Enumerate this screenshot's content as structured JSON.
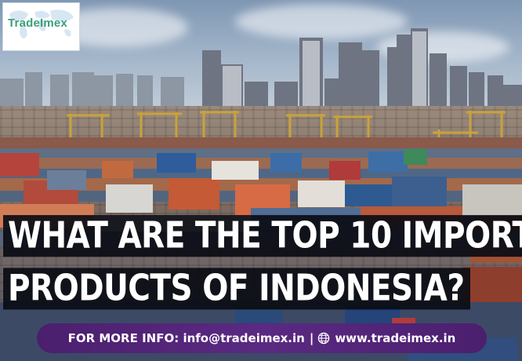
{
  "logo": {
    "text": "TradeImex"
  },
  "headline": {
    "line1": "WHAT ARE THE TOP 10 IMPORT",
    "line2": "PRODUCTS OF INDONESIA?"
  },
  "info_bar": {
    "prefix": "FOR MORE INFO: ",
    "email": "info@tradeimex.in",
    "separator": "|",
    "globe_icon": "globe-icon",
    "website": "www.tradeimex.in"
  },
  "colors": {
    "logo_green": "#3aa07a",
    "bar_purple": "#5a2a82",
    "headline_bg": "#0a0c14"
  }
}
